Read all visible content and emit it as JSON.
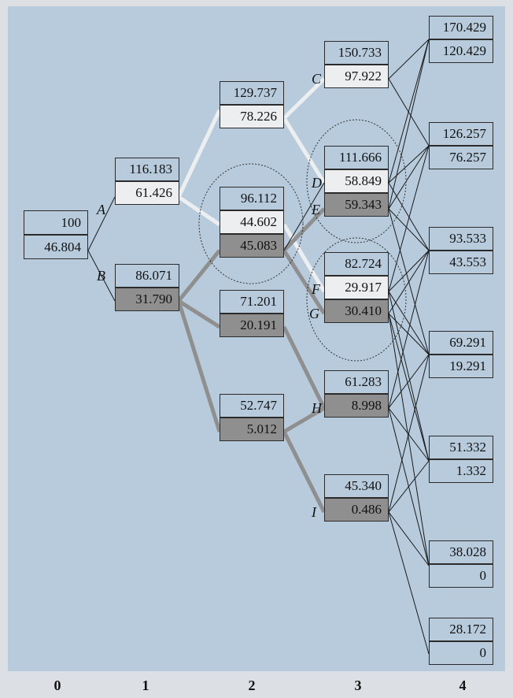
{
  "nodes": {
    "root": {
      "top": "100",
      "bottom": "46.804"
    },
    "A": {
      "label": "A",
      "top": "116.183",
      "bottom": "61.426"
    },
    "B": {
      "label": "B",
      "top": "86.071",
      "bottom": "31.790"
    },
    "t2_up": {
      "top": "129.737",
      "bottom": "78.226"
    },
    "t2_mid": {
      "top": "96.112",
      "bottom1": "44.602",
      "bottom2": "45.083"
    },
    "t2_low": {
      "top": "71.201",
      "bottom": "20.191"
    },
    "t2_bot": {
      "top": "52.747",
      "bottom": "5.012"
    },
    "C": {
      "label": "C",
      "top": "150.733",
      "bottom": "97.922"
    },
    "DE": {
      "labelD": "D",
      "labelE": "E",
      "top": "111.666",
      "bottom1": "58.849",
      "bottom2": "59.343"
    },
    "FG": {
      "labelF": "F",
      "labelG": "G",
      "top": "82.724",
      "bottom1": "29.917",
      "bottom2": "30.410"
    },
    "H": {
      "label": "H",
      "top": "61.283",
      "bottom": "8.998"
    },
    "I": {
      "label": "I",
      "top": "45.340",
      "bottom": "0.486"
    },
    "t4_1": {
      "top": "170.429",
      "bottom": "120.429"
    },
    "t4_2": {
      "top": "126.257",
      "bottom": "76.257"
    },
    "t4_3": {
      "top": "93.533",
      "bottom": "43.553"
    },
    "t4_4": {
      "top": "69.291",
      "bottom": "19.291"
    },
    "t4_5": {
      "top": "51.332",
      "bottom": "1.332"
    },
    "t4_6": {
      "top": "38.028",
      "bottom": "0"
    },
    "t4_7": {
      "top": "28.172",
      "bottom": "0"
    }
  },
  "axis": [
    "0",
    "1",
    "2",
    "3",
    "4"
  ],
  "colors": {
    "background": "#b7cbdd",
    "light_path": "#eceeef",
    "dark_path": "#8f8f8f",
    "thin_line": "#1a1a1a"
  }
}
